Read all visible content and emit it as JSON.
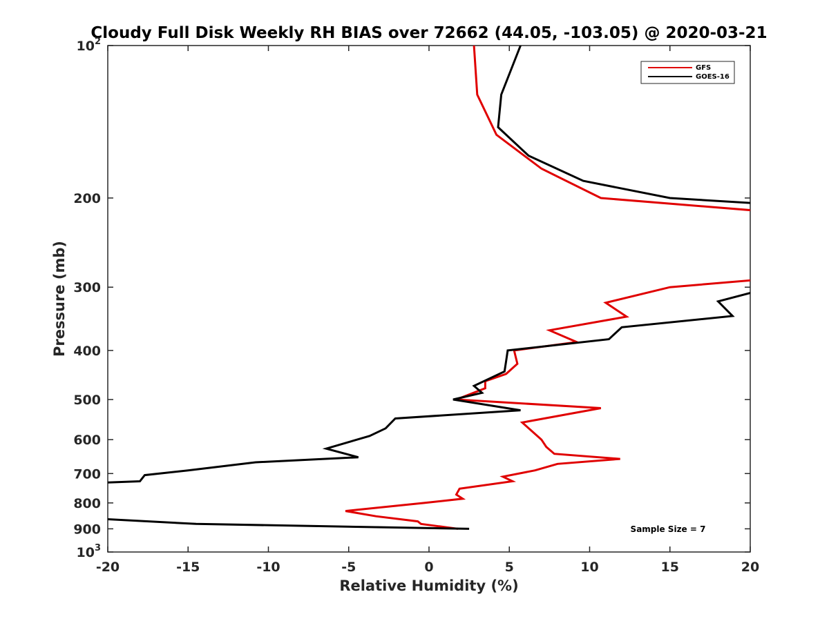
{
  "chart_data": {
    "type": "line",
    "title": "Cloudy Full Disk Weekly RH BIAS over 72662 (44.05, -103.05) @ 2020-03-21",
    "xlabel": "Relative Humidity (%)",
    "ylabel": "Pressure (mb)",
    "xlim": [
      -20,
      20
    ],
    "ylim": [
      100,
      1000
    ],
    "y_scale": "log",
    "y_reversed": true,
    "x_ticks": [
      -20,
      -15,
      -10,
      -5,
      0,
      5,
      10,
      15,
      20
    ],
    "x_tick_labels": [
      "-20",
      "-15",
      "-10",
      "-5",
      "0",
      "5",
      "10",
      "15",
      "20"
    ],
    "y_ticks": [
      100,
      200,
      300,
      400,
      500,
      600,
      700,
      800,
      900,
      1000
    ],
    "y_tick_labels": [
      {
        "base": "10",
        "sup": "2"
      },
      {
        "base": "200",
        "sup": ""
      },
      {
        "base": "300",
        "sup": ""
      },
      {
        "base": "400",
        "sup": ""
      },
      {
        "base": "500",
        "sup": ""
      },
      {
        "base": "600",
        "sup": ""
      },
      {
        "base": "700",
        "sup": ""
      },
      {
        "base": "800",
        "sup": ""
      },
      {
        "base": "900",
        "sup": ""
      },
      {
        "base": "10",
        "sup": "3"
      }
    ],
    "legend_position": "top-right",
    "annotation": "Sample Size = 7",
    "series": [
      {
        "name": "GFS",
        "color": "#e00000",
        "points": [
          [
            2.8,
            100
          ],
          [
            3.0,
            125
          ],
          [
            4.2,
            150
          ],
          [
            7.0,
            175
          ],
          [
            10.7,
            200
          ],
          [
            20.5,
            212
          ],
          [
            20.5,
            290
          ],
          [
            15.0,
            300
          ],
          [
            11.0,
            322
          ],
          [
            12.3,
            343
          ],
          [
            7.5,
            365
          ],
          [
            9.2,
            385
          ],
          [
            5.3,
            400
          ],
          [
            5.5,
            425
          ],
          [
            4.8,
            445
          ],
          [
            3.5,
            460
          ],
          [
            3.5,
            475
          ],
          [
            1.7,
            500
          ],
          [
            10.7,
            520
          ],
          [
            5.8,
            555
          ],
          [
            7.0,
            600
          ],
          [
            7.3,
            620
          ],
          [
            7.8,
            640
          ],
          [
            11.9,
            655
          ],
          [
            8.0,
            670
          ],
          [
            6.6,
            690
          ],
          [
            4.6,
            710
          ],
          [
            5.2,
            725
          ],
          [
            1.9,
            750
          ],
          [
            1.7,
            770
          ],
          [
            2.1,
            785
          ],
          [
            -0.3,
            800
          ],
          [
            -5.2,
            830
          ],
          [
            -3.3,
            850
          ],
          [
            -0.7,
            870
          ],
          [
            -0.5,
            880
          ],
          [
            1.8,
            900
          ]
        ]
      },
      {
        "name": "GOES-16",
        "color": "#000000",
        "points": [
          [
            5.7,
            100
          ],
          [
            4.5,
            125
          ],
          [
            4.3,
            145
          ],
          [
            6.2,
            165
          ],
          [
            9.6,
            185
          ],
          [
            15.0,
            200
          ],
          [
            20.5,
            205
          ],
          [
            20.5,
            305
          ],
          [
            18.0,
            320
          ],
          [
            18.9,
            342
          ],
          [
            12.0,
            360
          ],
          [
            11.2,
            380
          ],
          [
            4.9,
            400
          ],
          [
            4.8,
            420
          ],
          [
            4.7,
            440
          ],
          [
            2.8,
            470
          ],
          [
            3.3,
            485
          ],
          [
            1.5,
            500
          ],
          [
            5.7,
            525
          ],
          [
            -2.1,
            545
          ],
          [
            -2.7,
            570
          ],
          [
            -3.7,
            590
          ],
          [
            -6.4,
            625
          ],
          [
            -4.4,
            650
          ],
          [
            -10.8,
            665
          ],
          [
            -15.0,
            690
          ],
          [
            -17.7,
            705
          ],
          [
            -18.0,
            725
          ],
          [
            -20.5,
            730
          ],
          [
            -20.5,
            860
          ],
          [
            -14.5,
            880
          ],
          [
            2.5,
            900
          ]
        ]
      }
    ]
  }
}
